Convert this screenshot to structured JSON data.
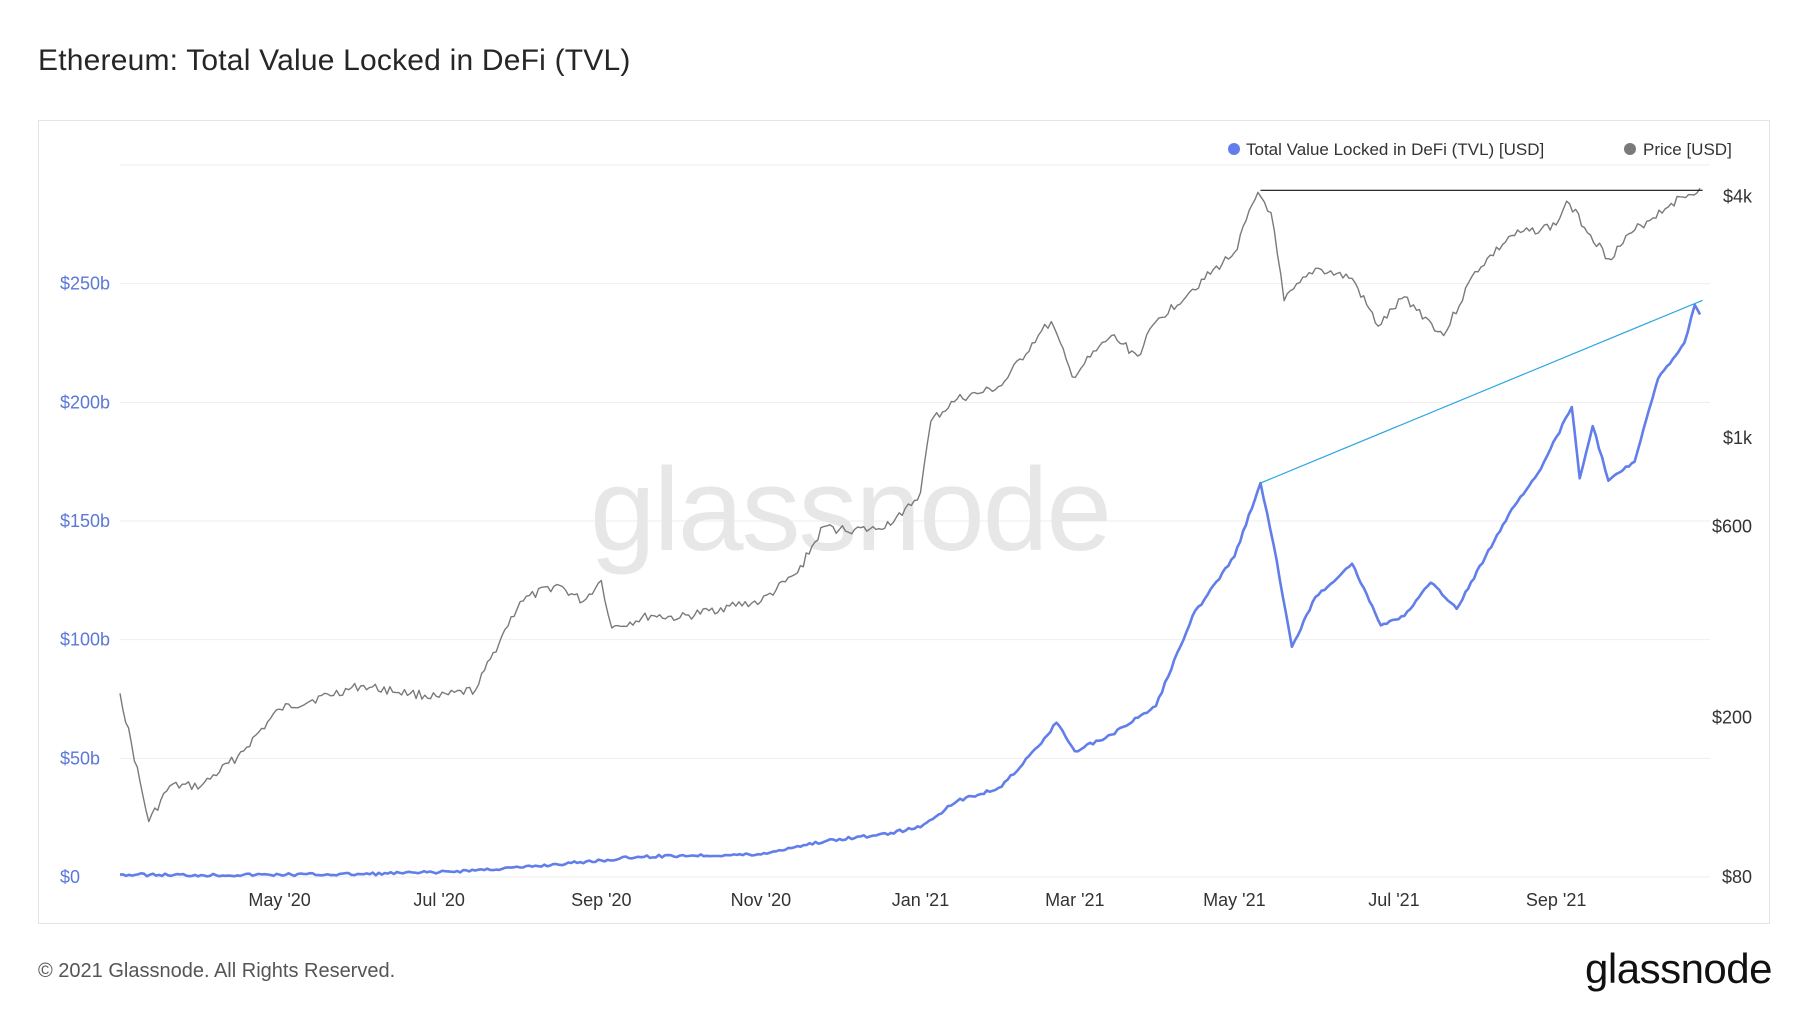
{
  "title": "Ethereum: Total Value Locked in DeFi (TVL)",
  "footer": {
    "copyright": "© 2021 Glassnode. All Rights Reserved.",
    "brand": "glassnode"
  },
  "watermark": "glassnode",
  "colors": {
    "tvl": "#627eea",
    "price": "#7a7a7a",
    "trend_tvl": "#2ba7e0",
    "trend_price": "#111111",
    "grid": "#eeeeee"
  },
  "chart_data": {
    "type": "line",
    "title": "Ethereum: Total Value Locked in DeFi (TVL)",
    "legend_position": "top-right",
    "legend": [
      "Total Value Locked in DeFi (TVL) [USD]",
      "Price [USD]"
    ],
    "x_range": [
      "2020-03-01",
      "2021-10-26"
    ],
    "x_ticks": [
      {
        "date": "2020-05-01",
        "label": "May '20"
      },
      {
        "date": "2020-07-01",
        "label": "Jul '20"
      },
      {
        "date": "2020-09-01",
        "label": "Sep '20"
      },
      {
        "date": "2020-11-01",
        "label": "Nov '20"
      },
      {
        "date": "2021-01-01",
        "label": "Jan '21"
      },
      {
        "date": "2021-03-01",
        "label": "Mar '21"
      },
      {
        "date": "2021-05-01",
        "label": "May '21"
      },
      {
        "date": "2021-07-01",
        "label": "Jul '21"
      },
      {
        "date": "2021-09-01",
        "label": "Sep '21"
      }
    ],
    "y_left": {
      "label": "",
      "scale": "linear",
      "range": [
        0,
        300
      ],
      "ticks": [
        {
          "value": 0,
          "label": "$0"
        },
        {
          "value": 50,
          "label": "$50b"
        },
        {
          "value": 100,
          "label": "$100b"
        },
        {
          "value": 150,
          "label": "$150b"
        },
        {
          "value": 200,
          "label": "$200b"
        },
        {
          "value": 250,
          "label": "$250b"
        }
      ]
    },
    "y_right": {
      "label": "",
      "scale": "log",
      "range": [
        80,
        4800
      ],
      "ticks": [
        {
          "value": 80,
          "label": "$80"
        },
        {
          "value": 200,
          "label": "$200"
        },
        {
          "value": 600,
          "label": "$600"
        },
        {
          "value": 1000,
          "label": "$1k"
        },
        {
          "value": 4000,
          "label": "$4k"
        }
      ]
    },
    "series": [
      {
        "name": "Total Value Locked in DeFi (TVL) [USD]",
        "axis": "left",
        "unit": "billion USD",
        "points": [
          [
            "2020-03-01",
            1.0
          ],
          [
            "2020-04-01",
            0.8
          ],
          [
            "2020-05-01",
            1.0
          ],
          [
            "2020-06-01",
            1.2
          ],
          [
            "2020-07-01",
            2.0
          ],
          [
            "2020-08-01",
            4.0
          ],
          [
            "2020-09-01",
            7.0
          ],
          [
            "2020-09-15",
            8.5
          ],
          [
            "2020-10-01",
            9.0
          ],
          [
            "2020-11-01",
            9.5
          ],
          [
            "2020-11-15",
            13.0
          ],
          [
            "2020-12-01",
            16.0
          ],
          [
            "2020-12-15",
            17.5
          ],
          [
            "2021-01-01",
            21.0
          ],
          [
            "2021-01-15",
            32.0
          ],
          [
            "2021-02-01",
            38.0
          ],
          [
            "2021-02-15",
            55.0
          ],
          [
            "2021-02-22",
            65.0
          ],
          [
            "2021-03-01",
            53.0
          ],
          [
            "2021-03-15",
            60.0
          ],
          [
            "2021-04-01",
            72.0
          ],
          [
            "2021-04-15",
            110.0
          ],
          [
            "2021-05-01",
            135.0
          ],
          [
            "2021-05-11",
            166.0
          ],
          [
            "2021-05-16",
            140.0
          ],
          [
            "2021-05-23",
            97.0
          ],
          [
            "2021-06-01",
            118.0
          ],
          [
            "2021-06-15",
            132.0
          ],
          [
            "2021-06-26",
            106.0
          ],
          [
            "2021-07-05",
            110.0
          ],
          [
            "2021-07-15",
            124.0
          ],
          [
            "2021-07-25",
            113.0
          ],
          [
            "2021-08-05",
            135.0
          ],
          [
            "2021-08-15",
            155.0
          ],
          [
            "2021-08-25",
            170.0
          ],
          [
            "2021-09-07",
            198.0
          ],
          [
            "2021-09-10",
            168.0
          ],
          [
            "2021-09-15",
            190.0
          ],
          [
            "2021-09-21",
            167.0
          ],
          [
            "2021-10-01",
            175.0
          ],
          [
            "2021-10-10",
            210.0
          ],
          [
            "2021-10-20",
            225.0
          ],
          [
            "2021-10-24",
            241.0
          ],
          [
            "2021-10-26",
            237.0
          ]
        ]
      },
      {
        "name": "Price [USD]",
        "axis": "right",
        "unit": "USD",
        "points": [
          [
            "2020-03-01",
            230
          ],
          [
            "2020-03-12",
            110
          ],
          [
            "2020-03-20",
            135
          ],
          [
            "2020-04-01",
            135
          ],
          [
            "2020-04-15",
            160
          ],
          [
            "2020-05-01",
            210
          ],
          [
            "2020-06-01",
            240
          ],
          [
            "2020-06-20",
            230
          ],
          [
            "2020-07-01",
            225
          ],
          [
            "2020-07-15",
            235
          ],
          [
            "2020-07-25",
            320
          ],
          [
            "2020-08-01",
            390
          ],
          [
            "2020-08-15",
            430
          ],
          [
            "2020-08-25",
            390
          ],
          [
            "2020-09-01",
            440
          ],
          [
            "2020-09-05",
            335
          ],
          [
            "2020-09-20",
            360
          ],
          [
            "2020-10-01",
            355
          ],
          [
            "2020-10-20",
            380
          ],
          [
            "2020-11-01",
            390
          ],
          [
            "2020-11-15",
            460
          ],
          [
            "2020-11-25",
            600
          ],
          [
            "2020-12-01",
            590
          ],
          [
            "2020-12-15",
            590
          ],
          [
            "2020-12-25",
            640
          ],
          [
            "2021-01-01",
            730
          ],
          [
            "2021-01-05",
            1100
          ],
          [
            "2021-01-15",
            1250
          ],
          [
            "2021-01-25",
            1300
          ],
          [
            "2021-02-01",
            1350
          ],
          [
            "2021-02-15",
            1800
          ],
          [
            "2021-02-20",
            1950
          ],
          [
            "2021-02-28",
            1420
          ],
          [
            "2021-03-15",
            1800
          ],
          [
            "2021-03-25",
            1600
          ],
          [
            "2021-04-01",
            1950
          ],
          [
            "2021-04-15",
            2350
          ],
          [
            "2021-05-01",
            2900
          ],
          [
            "2021-05-10",
            4100
          ],
          [
            "2021-05-15",
            3650
          ],
          [
            "2021-05-20",
            2200
          ],
          [
            "2021-06-01",
            2650
          ],
          [
            "2021-06-15",
            2500
          ],
          [
            "2021-06-25",
            1900
          ],
          [
            "2021-07-05",
            2250
          ],
          [
            "2021-07-20",
            1800
          ],
          [
            "2021-08-01",
            2600
          ],
          [
            "2021-08-15",
            3200
          ],
          [
            "2021-09-01",
            3400
          ],
          [
            "2021-09-05",
            3900
          ],
          [
            "2021-09-21",
            2800
          ],
          [
            "2021-10-01",
            3300
          ],
          [
            "2021-10-15",
            3850
          ],
          [
            "2021-10-26",
            4200
          ]
        ]
      }
    ],
    "annotations": [
      {
        "type": "trendline",
        "series": "Total Value Locked in DeFi (TVL) [USD]",
        "from": [
          "2021-05-11",
          166
        ],
        "to": [
          "2021-10-27",
          243
        ]
      },
      {
        "type": "trendline",
        "series": "Price [USD]",
        "from": [
          "2021-05-11",
          4150
        ],
        "to": [
          "2021-10-27",
          4150
        ]
      }
    ]
  }
}
